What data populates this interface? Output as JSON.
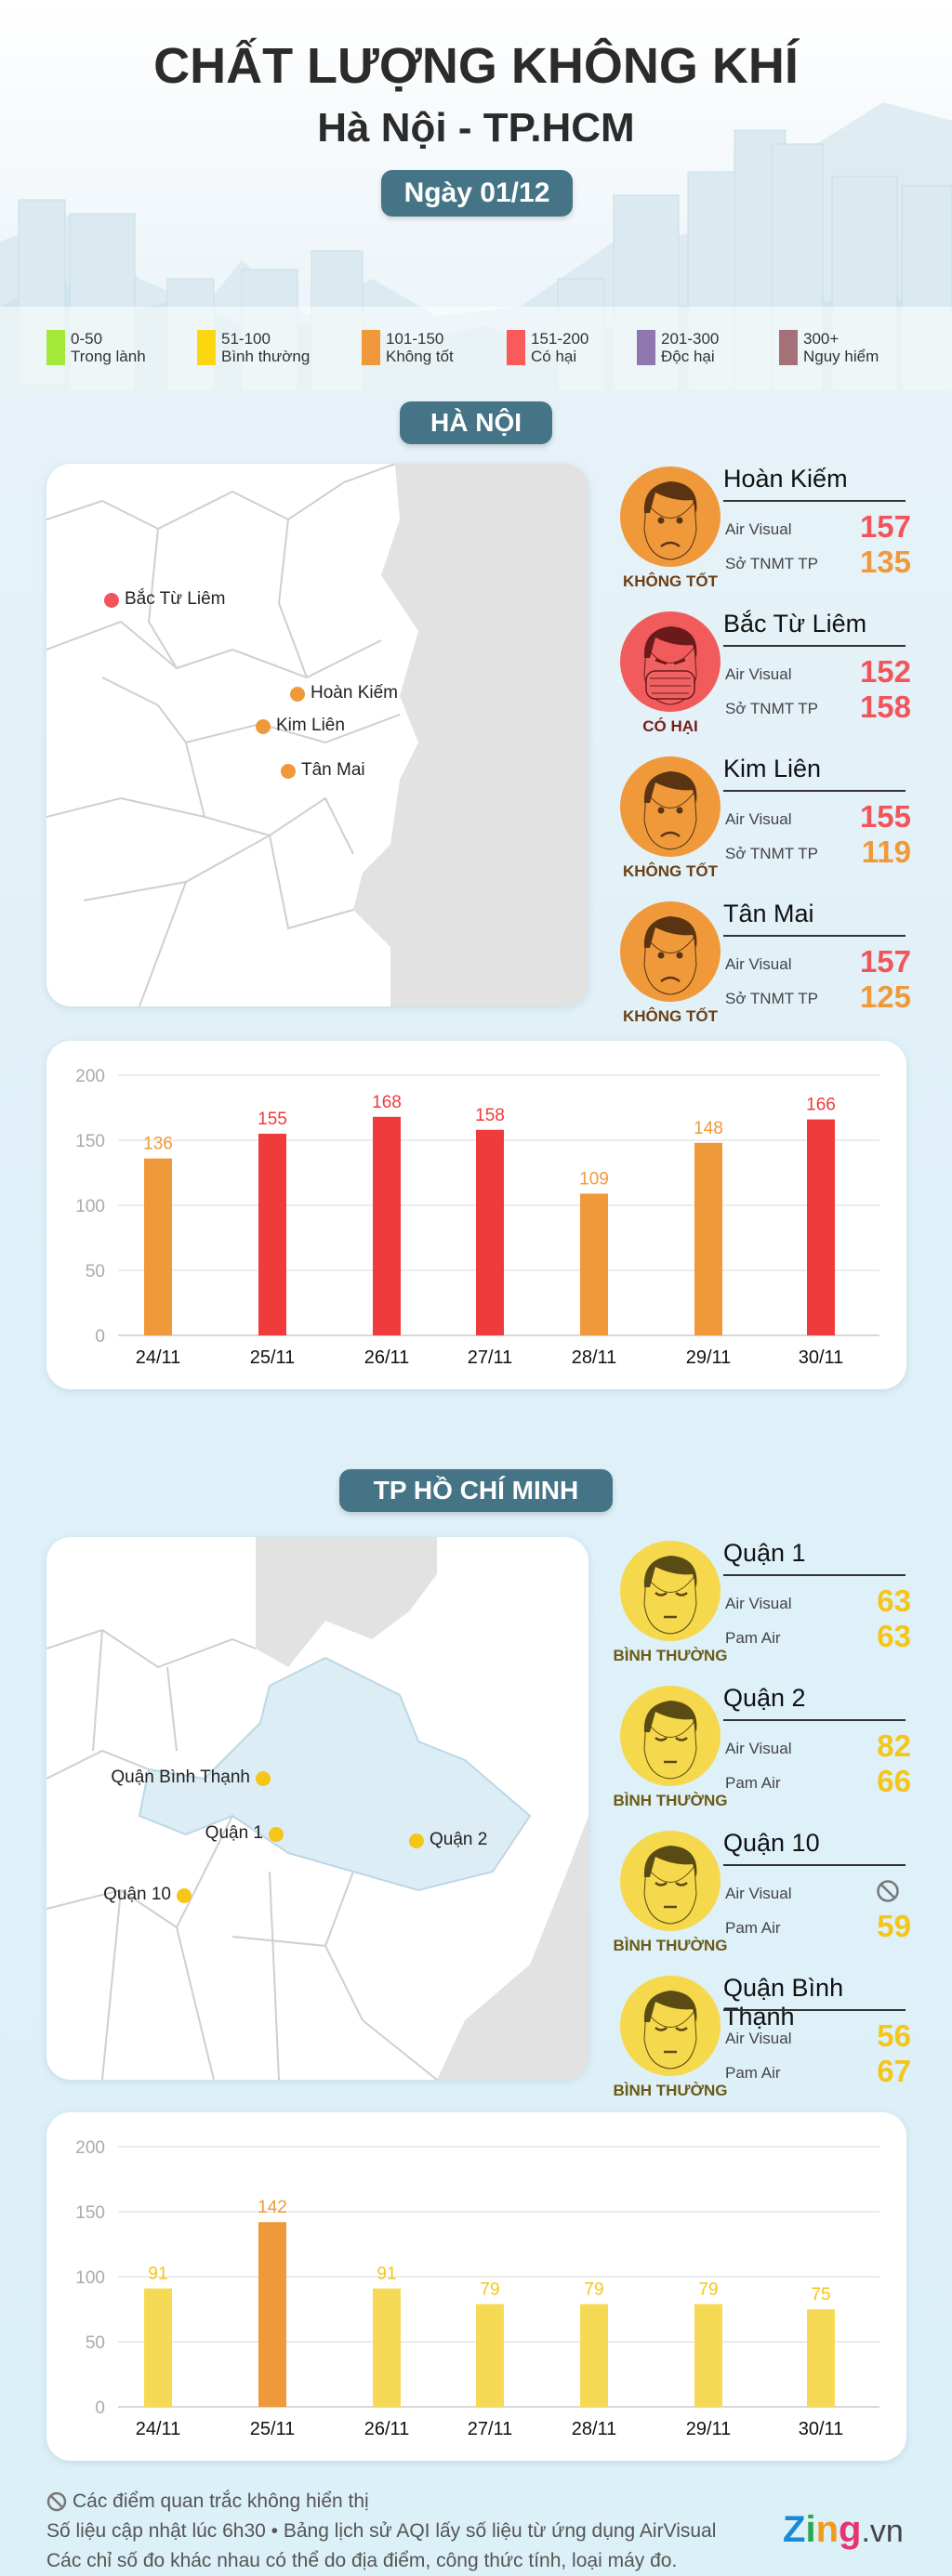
{
  "header": {
    "title": "CHẤT LƯỢNG KHÔNG KHÍ",
    "subtitle": "Hà Nội - TP.HCM",
    "date": "Ngày 01/12"
  },
  "legend": [
    {
      "range": "0-50",
      "label": "Trong lành",
      "color": "#a4e83a"
    },
    {
      "range": "51-100",
      "label": "Bình thường",
      "color": "#fcd60f"
    },
    {
      "range": "101-150",
      "label": "Không tốt",
      "color": "#f0993b"
    },
    {
      "range": "151-200",
      "label": "Có hại",
      "color": "#fa5a5a"
    },
    {
      "range": "201-300",
      "label": "Độc hại",
      "color": "#9077b0"
    },
    {
      "range": "300+",
      "label": "Nguy hiểm",
      "color": "#a57178"
    }
  ],
  "hanoi": {
    "section_title": "HÀ NỘI",
    "map_labels": [
      "Bắc Từ Liêm",
      "Hoàn Kiếm",
      "Kim Liên",
      "Tân Mai"
    ],
    "stations": [
      {
        "name": "Hoàn Kiếm",
        "status": "KHÔNG TỐT",
        "face": "sad-face-icon",
        "src1": "Air Visual",
        "v1": "157",
        "src2": "Sở TNMT TP",
        "v2": "135",
        "c1": "#f2545b",
        "c2": "#f0993b"
      },
      {
        "name": "Bắc Từ Liêm",
        "status": "CÓ HẠI",
        "face": "masked-face-icon",
        "src1": "Air Visual",
        "v1": "152",
        "src2": "Sở TNMT TP",
        "v2": "158",
        "c1": "#f2545b",
        "c2": "#f2545b"
      },
      {
        "name": "Kim Liên",
        "status": "KHÔNG TỐT",
        "face": "sad-face-icon",
        "src1": "Air Visual",
        "v1": "155",
        "src2": "Sở TNMT TP",
        "v2": "119",
        "c1": "#f2545b",
        "c2": "#f0993b"
      },
      {
        "name": "Tân Mai",
        "status": "KHÔNG TỐT",
        "face": "sad-face-icon",
        "src1": "Air Visual",
        "v1": "157",
        "src2": "Sở TNMT TP",
        "v2": "125",
        "c1": "#f2545b",
        "c2": "#f0993b"
      }
    ]
  },
  "hcm": {
    "section_title": "TP HỒ CHÍ MINH",
    "map_labels": [
      "Quận Bình Thạnh",
      "Quận 1",
      "Quận 10",
      "Quận 2"
    ],
    "stations": [
      {
        "name": "Quận 1",
        "status": "BÌNH THƯỜNG",
        "face": "calm-face-icon",
        "src1": "Air Visual",
        "v1": "63",
        "src2": "Pam Air",
        "v2": "63",
        "c1": "#f5c518",
        "c2": "#f5c518"
      },
      {
        "name": "Quận 2",
        "status": "BÌNH THƯỜNG",
        "face": "calm-face-icon",
        "src1": "Air Visual",
        "v1": "82",
        "src2": "Pam Air",
        "v2": "66",
        "c1": "#f5c518",
        "c2": "#f5c518"
      },
      {
        "name": "Quận 10",
        "status": "BÌNH THƯỜNG",
        "face": "calm-face-icon",
        "src1": "Air Visual",
        "v1": null,
        "v1_icon": "not-displayed-icon",
        "src2": "Pam Air",
        "v2": "59",
        "c1": "#f5c518",
        "c2": "#f5c518"
      },
      {
        "name": "Quận Bình Thạnh",
        "status": "BÌNH THƯỜNG",
        "face": "calm-face-icon",
        "src1": "Air Visual",
        "v1": "56",
        "src2": "Pam Air",
        "v2": "67",
        "c1": "#f5c518",
        "c2": "#f5c518"
      }
    ]
  },
  "chart_data": [
    {
      "type": "bar",
      "categories": [
        "24/11",
        "25/11",
        "26/11",
        "27/11",
        "28/11",
        "29/11",
        "30/11"
      ],
      "values": [
        136,
        155,
        168,
        158,
        109,
        148,
        166
      ],
      "colors": [
        "#f0993b",
        "#ef3b3b",
        "#ef3b3b",
        "#ef3b3b",
        "#f0993b",
        "#f0993b",
        "#ef3b3b"
      ],
      "ylim": [
        0,
        200
      ],
      "yticks": [
        0,
        50,
        100,
        150,
        200
      ],
      "grid": true
    },
    {
      "type": "bar",
      "categories": [
        "24/11",
        "25/11",
        "26/11",
        "27/11",
        "28/11",
        "29/11",
        "30/11"
      ],
      "values": [
        91,
        142,
        91,
        79,
        79,
        79,
        75
      ],
      "colors": [
        "#f6da55",
        "#f0993b",
        "#f6da55",
        "#f6da55",
        "#f6da55",
        "#f6da55",
        "#f6da55"
      ],
      "ylim": [
        0,
        200
      ],
      "yticks": [
        0,
        50,
        100,
        150,
        200
      ],
      "grid": true
    }
  ],
  "footer": {
    "note": "Các điểm quan trắc không hiển thị",
    "line2": "Số liệu cập nhật lúc 6h30 • Bảng lịch sử AQI lấy số liệu từ ứng dụng AirVisual",
    "line3": "Các chỉ số đo khác nhau có thể do địa điểm, công thức tính, loại máy đo.",
    "logo": "Zing.vn"
  }
}
